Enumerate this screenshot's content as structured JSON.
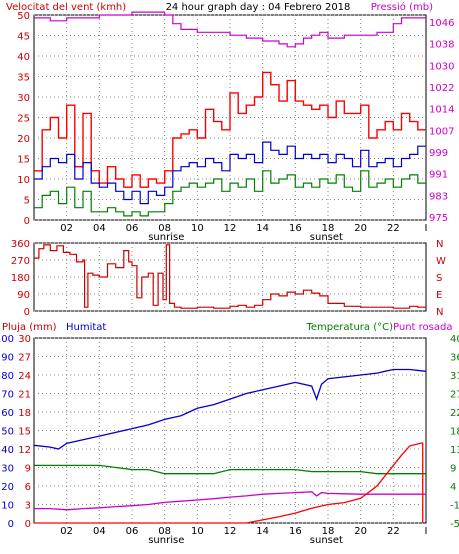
{
  "header": {
    "left": "Velocitat del vent (kmh)",
    "center": "24 hour graph day : 04 Febrero 2018",
    "right": "Pressió (mb)"
  },
  "colors": {
    "gust": "#ff0000",
    "avg": "#0000cc",
    "min": "#008000",
    "pressure": "#cc00cc",
    "winddir": "#cc0000",
    "axis": "#000000",
    "grid": "#888888",
    "label_red": "#cc0000",
    "label_blue": "#0000cc",
    "label_green": "#008000",
    "label_magenta": "#cc00cc"
  },
  "time_axis": {
    "labels": [
      "02",
      "04",
      "06",
      "08",
      "10",
      "12",
      "14",
      "16",
      "18",
      "20",
      "22"
    ],
    "sunrise_label": "sunrise",
    "sunset_label": "sunset",
    "end_marker": "I"
  },
  "chart_data": [
    {
      "type": "line",
      "name": "wind-speed-and-pressure",
      "xlim": [
        0,
        24
      ],
      "ylim": [
        0,
        50
      ],
      "y_ticks_left": [
        "0",
        "5",
        "10",
        "15",
        "20",
        "25",
        "30",
        "35",
        "40",
        "45",
        "50"
      ],
      "y2lim": [
        975,
        1046
      ],
      "y_ticks_right": [
        "975",
        "983",
        "991",
        "999",
        "1007",
        "1014",
        "1022",
        "1030",
        "1038",
        "1046"
      ],
      "sunrise": 8.1,
      "sunset": 17.9,
      "series": [
        {
          "key": "gust",
          "x": [
            0,
            0.5,
            1,
            1.5,
            2,
            2.5,
            3,
            3.5,
            4,
            4.5,
            5,
            5.5,
            6,
            6.5,
            7,
            7.5,
            8,
            8.5,
            9,
            9.5,
            10,
            10.5,
            11,
            11.5,
            12,
            12.5,
            13,
            13.5,
            14,
            14.5,
            15,
            15.5,
            16,
            16.5,
            17,
            17.5,
            18,
            18.5,
            19,
            19.5,
            20,
            20.5,
            21,
            21.5,
            22,
            22.5,
            23,
            23.5
          ],
          "values": [
            12,
            22,
            25,
            20,
            28,
            13,
            26,
            12,
            9,
            13,
            10,
            8,
            11,
            8,
            10,
            9,
            12,
            20,
            21,
            22,
            20,
            27,
            24,
            22,
            31,
            26,
            28,
            30,
            36,
            33,
            29,
            34,
            29,
            28,
            27,
            28,
            25,
            29,
            26,
            26,
            28,
            20,
            22,
            24,
            22,
            26,
            24,
            22
          ]
        },
        {
          "key": "avg",
          "x": [
            0,
            0.5,
            1,
            1.5,
            2,
            2.5,
            3,
            3.5,
            4,
            4.5,
            5,
            5.5,
            6,
            6.5,
            7,
            7.5,
            8,
            8.5,
            9,
            9.5,
            10,
            10.5,
            11,
            11.5,
            12,
            12.5,
            13,
            13.5,
            14,
            14.5,
            15,
            15.5,
            16,
            16.5,
            17,
            17.5,
            18,
            18.5,
            19,
            19.5,
            20,
            20.5,
            21,
            21.5,
            22,
            22.5,
            23,
            23.5
          ],
          "values": [
            10,
            13,
            15,
            14,
            16,
            10,
            14,
            9,
            8,
            9,
            7,
            5,
            7,
            4,
            7,
            6,
            8,
            12,
            13,
            14,
            13,
            15,
            14,
            12,
            16,
            15,
            16,
            14,
            19,
            17,
            16,
            18,
            15,
            16,
            15,
            16,
            14,
            16,
            15,
            13,
            17,
            13,
            14,
            15,
            13,
            15,
            16,
            18
          ]
        },
        {
          "key": "min",
          "x": [
            0,
            0.5,
            1,
            1.5,
            2,
            2.5,
            3,
            3.5,
            4,
            4.5,
            5,
            5.5,
            6,
            6.5,
            7,
            7.5,
            8,
            8.5,
            9,
            9.5,
            10,
            10.5,
            11,
            11.5,
            12,
            12.5,
            13,
            13.5,
            14,
            14.5,
            15,
            15.5,
            16,
            16.5,
            17,
            17.5,
            18,
            18.5,
            19,
            19.5,
            20,
            20.5,
            21,
            21.5,
            22,
            22.5,
            23,
            23.5
          ],
          "values": [
            3,
            6,
            7,
            4,
            8,
            3,
            7,
            2,
            2,
            3,
            2,
            1,
            2,
            1,
            2,
            2,
            4,
            7,
            8,
            9,
            8,
            9,
            10,
            7,
            9,
            8,
            10,
            7,
            12,
            9,
            10,
            11,
            8,
            9,
            8,
            10,
            9,
            11,
            8,
            7,
            12,
            8,
            9,
            10,
            8,
            10,
            11,
            9
          ]
        },
        {
          "key": "pressure",
          "x": [
            0,
            1,
            2,
            3,
            4,
            5,
            6,
            7,
            7.5,
            8,
            8.5,
            9,
            10,
            11,
            12,
            13,
            14,
            15,
            15.5,
            16,
            16.5,
            17,
            17.5,
            18,
            19,
            20,
            21,
            22,
            22.5,
            23,
            24
          ],
          "values": [
            1045,
            1044,
            1045,
            1045,
            1046,
            1046,
            1047,
            1047,
            1047,
            1046,
            1043,
            1041,
            1040,
            1040,
            1039,
            1038,
            1037,
            1036,
            1035,
            1036,
            1038,
            1039,
            1040,
            1038,
            1039,
            1039,
            1040,
            1043,
            1045,
            1045,
            1045
          ]
        }
      ]
    },
    {
      "type": "line",
      "name": "wind-direction",
      "xlim": [
        0,
        24
      ],
      "ylim": [
        0,
        360
      ],
      "y_ticks_left": [
        "0",
        "90",
        "180",
        "270",
        "360"
      ],
      "y_ticks_right": [
        "N",
        "E",
        "S",
        "W",
        "N"
      ],
      "series": [
        {
          "key": "winddir",
          "x": [
            0,
            0.3,
            0.6,
            1,
            1.4,
            1.8,
            2.2,
            2.6,
            3,
            3.1,
            3.3,
            3.6,
            4,
            4.5,
            5,
            5.5,
            5.8,
            6,
            6.3,
            6.6,
            7,
            7.3,
            7.6,
            7.9,
            8.1,
            8.3,
            8.6,
            9,
            10,
            11,
            12,
            12.5,
            13,
            13.5,
            14,
            14.5,
            15,
            15.5,
            16,
            16.5,
            17,
            17.5,
            18,
            19,
            20,
            21,
            22,
            23,
            23.5
          ],
          "values": [
            280,
            330,
            350,
            320,
            345,
            310,
            300,
            260,
            270,
            20,
            200,
            190,
            180,
            250,
            230,
            320,
            260,
            240,
            70,
            180,
            200,
            30,
            200,
            60,
            350,
            40,
            20,
            15,
            20,
            15,
            25,
            30,
            20,
            30,
            60,
            90,
            80,
            100,
            90,
            110,
            95,
            80,
            40,
            25,
            20,
            20,
            15,
            25,
            20
          ]
        }
      ]
    },
    {
      "type": "line",
      "name": "rain-humidity-temperature",
      "xlim": [
        0,
        24
      ],
      "labels": {
        "rain": "Pluja (mm)",
        "humidity": "Humitat",
        "temperature": "Temperatura (°C)",
        "dewpoint": "Punt rosada"
      },
      "y_ticks_humidity": [
        "0",
        "10",
        "20",
        "30",
        "40",
        "50",
        "60",
        "70",
        "80",
        "90",
        "100"
      ],
      "y_ticks_rain": [
        "0",
        "3",
        "6",
        "9",
        "12",
        "15",
        "18",
        "21",
        "24",
        "27",
        "30"
      ],
      "y_ticks_temp": [
        "-5",
        "-1",
        "4",
        "9",
        "13",
        "18",
        "22",
        "27",
        "31",
        "36",
        "40"
      ],
      "rain_lim": [
        0,
        30
      ],
      "humidity_lim": [
        0,
        100
      ],
      "temp_lim": [
        -5,
        40
      ],
      "series": [
        {
          "key": "humidity",
          "x": [
            0,
            1,
            1.5,
            2,
            3,
            4,
            5,
            6,
            7,
            8,
            9,
            10,
            11,
            12,
            13,
            14,
            15,
            16,
            17,
            17.3,
            17.6,
            18,
            19,
            20,
            21,
            22,
            23,
            24
          ],
          "values": [
            42,
            41,
            40,
            43,
            45,
            47,
            49,
            51,
            53,
            56,
            58,
            62,
            64,
            67,
            70,
            72,
            74,
            76,
            74,
            67,
            75,
            78,
            79,
            80,
            81,
            83,
            83,
            82
          ]
        },
        {
          "key": "temperature",
          "x": [
            0,
            1,
            2,
            3,
            4,
            5,
            6,
            7,
            8,
            9,
            10,
            11,
            12,
            13,
            14,
            15,
            16,
            17,
            18,
            19,
            20,
            21,
            22,
            23,
            24
          ],
          "values": [
            9,
            9,
            9,
            9,
            9,
            8.5,
            8,
            8,
            7,
            7,
            7,
            7,
            8,
            8,
            8,
            8,
            8,
            7.5,
            7.5,
            7.5,
            7.5,
            7,
            7,
            7,
            7
          ]
        },
        {
          "key": "dewpoint",
          "x": [
            0,
            1,
            2,
            3,
            4,
            5,
            6,
            7,
            8,
            9,
            10,
            11,
            12,
            13,
            14,
            15,
            16,
            17,
            17.3,
            17.6,
            18,
            19,
            20,
            21,
            22,
            23,
            24
          ],
          "values": [
            -1.5,
            -1.5,
            -1.8,
            -1.5,
            -1.3,
            -1,
            -0.8,
            -0.5,
            0,
            0.3,
            0.6,
            0.9,
            1.3,
            1.6,
            2,
            2.2,
            2.4,
            2.6,
            1.6,
            2.4,
            2.2,
            2.1,
            2,
            2,
            2,
            2,
            2
          ]
        },
        {
          "key": "rain",
          "x": [
            0,
            13,
            14,
            15,
            16,
            17,
            18,
            19,
            20,
            21,
            21.6,
            22.5,
            23,
            23.8
          ],
          "values": [
            0,
            0,
            0.5,
            1,
            1.6,
            2.4,
            3,
            3.3,
            4,
            6,
            8,
            11,
            12.5,
            13
          ]
        }
      ]
    }
  ]
}
